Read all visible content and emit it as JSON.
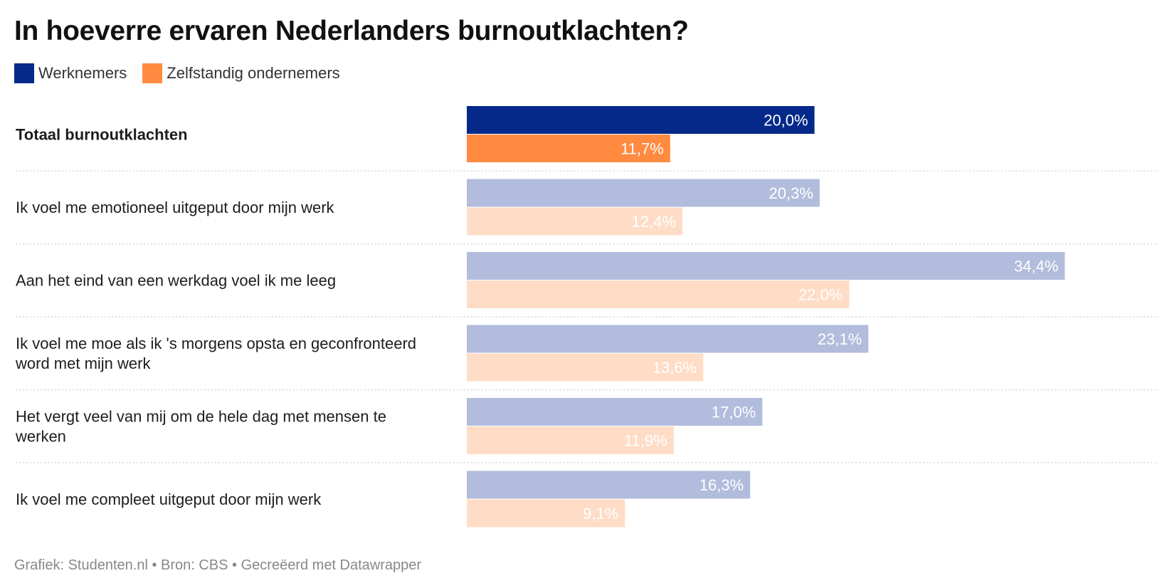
{
  "title": "In hoeverre ervaren Nederlanders burnoutklachten?",
  "legend": [
    {
      "label": "Werknemers",
      "color": "#04298a"
    },
    {
      "label": "Zelfstandig ondernemers",
      "color": "#ff8a40"
    }
  ],
  "chart_data": {
    "type": "bar",
    "orientation": "horizontal",
    "title": "In hoeverre ervaren Nederlanders burnoutklachten?",
    "categories": [
      [
        "Totaal burnoutklachten"
      ],
      [
        "Ik voel me emotioneel uitgeput door mijn werk"
      ],
      [
        "Aan het eind van een werkdag voel ik me leeg"
      ],
      [
        "Ik voel me moe als ik 's morgens opsta en geconfronteerd",
        "word met mijn werk"
      ],
      [
        "Het vergt veel van mij om de hele dag met mensen te",
        "werken"
      ],
      [
        "Ik voel me compleet uitgeput door mijn werk"
      ]
    ],
    "series": [
      {
        "name": "Werknemers",
        "values": [
          20.0,
          20.3,
          34.4,
          23.1,
          17.0,
          16.3
        ],
        "labels": [
          "20,0%",
          "20,3%",
          "34,4%",
          "23,1%",
          "17,0%",
          "16,3%"
        ],
        "color": "#04298a",
        "muted_color": "#b2bcdc"
      },
      {
        "name": "Zelfstandig ondernemers",
        "values": [
          11.7,
          12.4,
          22.0,
          13.6,
          11.9,
          9.1
        ],
        "labels": [
          "11,7%",
          "12,4%",
          "22,0%",
          "13,6%",
          "11,9%",
          "9,1%"
        ],
        "color": "#ff8a40",
        "muted_color": "#ffdcc6"
      }
    ],
    "highlighted_category": "Totaal burnoutklachten",
    "xlim": [
      0,
      40
    ],
    "grid": false,
    "legend_position": "top-left"
  },
  "footer": "Grafiek: Studenten.nl • Bron: CBS • Gecreëerd met Datawrapper"
}
